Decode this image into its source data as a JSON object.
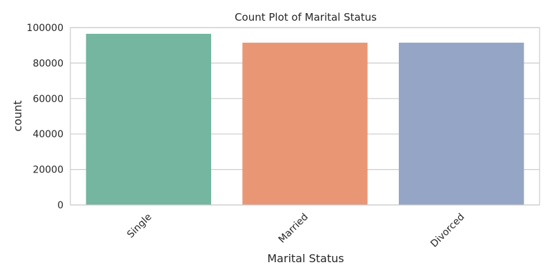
{
  "chart_data": {
    "type": "bar",
    "title": "Count Plot of Marital Status",
    "xlabel": "Marital Status",
    "ylabel": "count",
    "categories": [
      "Single",
      "Married",
      "Divorced"
    ],
    "values": [
      96500,
      91500,
      91500
    ],
    "ylim": [
      0,
      100000
    ],
    "yticks": [
      0,
      20000,
      40000,
      60000,
      80000,
      100000
    ],
    "ytick_labels": [
      "0",
      "20000",
      "40000",
      "60000",
      "80000",
      "100000"
    ],
    "colors": [
      "#74b6a0",
      "#e99675",
      "#95a5c5"
    ],
    "grid": "horizontal",
    "legend": "none"
  }
}
